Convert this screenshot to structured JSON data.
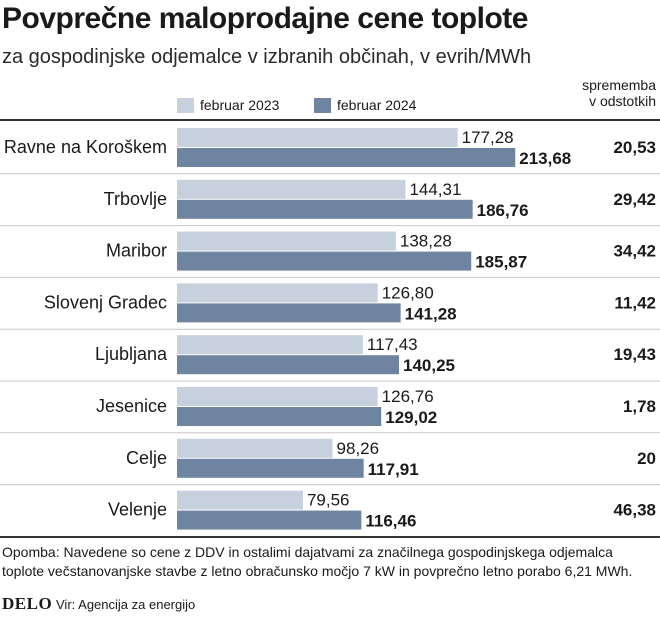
{
  "title": "Povprečne maloprodajne cene toplote",
  "subtitle": "za gospodinjske odjemalce v izbranih občinah, v evrih/MWh",
  "change_header_line1": "sprememba",
  "change_header_line2": "v odstotkih",
  "note": "Opomba: Navedene so cene z DDV in ostalimi dajatvami za značilnega gospodinjskega odjemalca toplote večstanovanjske stavbe z letno obračunsko močjo 7 kW in povprečno letno porabo 6,21 MWh.",
  "brand": "DELO",
  "source": "Vir: Agencija za energijo",
  "colors": {
    "series2023": "#c7d1dd",
    "series2024": "#6f84a1",
    "separator": "#c8c8c8",
    "rule": "#333333"
  },
  "chart_data": {
    "type": "bar",
    "orientation": "horizontal",
    "categories": [
      "Ravne na Koroškem",
      "Trbovlje",
      "Maribor",
      "Slovenj Gradec",
      "Ljubljana",
      "Jesenice",
      "Celje",
      "Velenje"
    ],
    "series": [
      {
        "name": "februar 2023",
        "values": [
          177.28,
          144.31,
          138.28,
          126.8,
          117.43,
          126.76,
          98.26,
          79.56
        ],
        "labels": [
          "177,28",
          "144,31",
          "138,28",
          "126,80",
          "117,43",
          "126,76",
          "98,26",
          "79,56"
        ]
      },
      {
        "name": "februar 2024",
        "values": [
          213.68,
          186.76,
          185.87,
          141.28,
          140.25,
          129.02,
          117.91,
          116.46
        ],
        "labels": [
          "213,68",
          "186,76",
          "185,87",
          "141,28",
          "140,25",
          "129,02",
          "117,91",
          "116,46"
        ]
      }
    ],
    "change_percent": [
      "20,53",
      "29,42",
      "34,42",
      "11,42",
      "19,43",
      "1,78",
      "20",
      "46,38"
    ],
    "xlim": [
      0,
      240
    ]
  }
}
